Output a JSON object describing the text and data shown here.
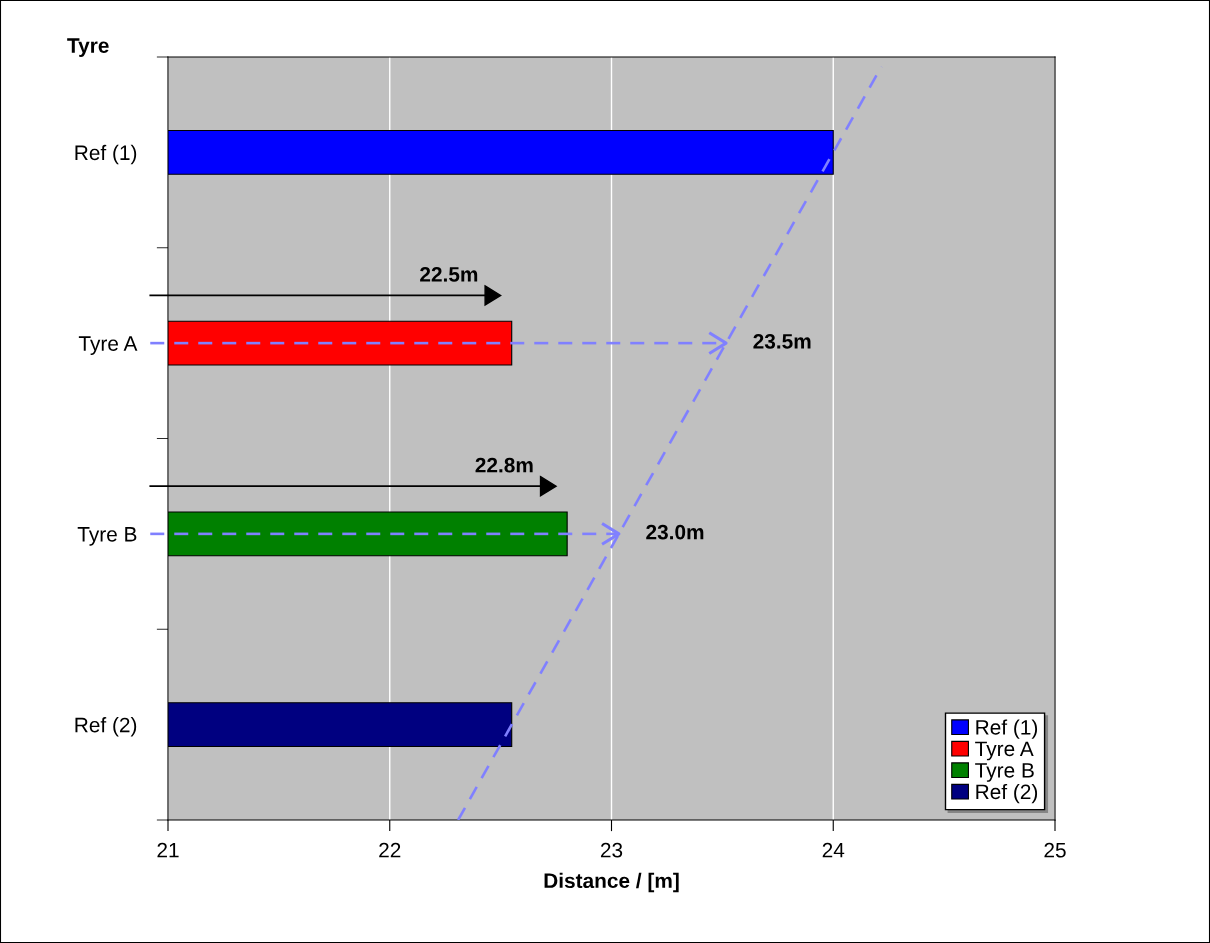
{
  "chart_data": {
    "type": "bar",
    "orientation": "horizontal",
    "ylabel": "Tyre",
    "xlabel": "Distance / [m]",
    "categories": [
      "Ref (1)",
      "Tyre A",
      "Tyre B",
      "Ref (2)"
    ],
    "stacked": true,
    "series": [
      {
        "name": "Ref (1)",
        "color": "#0000ff",
        "values": [
          24.0,
          null,
          null,
          null
        ]
      },
      {
        "name": "Tyre A",
        "color": "#ff0000",
        "values": [
          null,
          22.55,
          null,
          null
        ]
      },
      {
        "name": "Tyre B",
        "color": "#008000",
        "values": [
          null,
          null,
          22.8,
          null
        ]
      },
      {
        "name": "Ref (2)",
        "color": "#000080",
        "values": [
          null,
          null,
          null,
          22.55
        ]
      }
    ],
    "xlim": [
      21,
      25
    ],
    "xticks": [
      21,
      22,
      23,
      24,
      25
    ],
    "grid": "x",
    "legend": "bottom right",
    "annotations": [
      "22.5m",
      "23.5m",
      "22.8m",
      "23.0m"
    ]
  }
}
